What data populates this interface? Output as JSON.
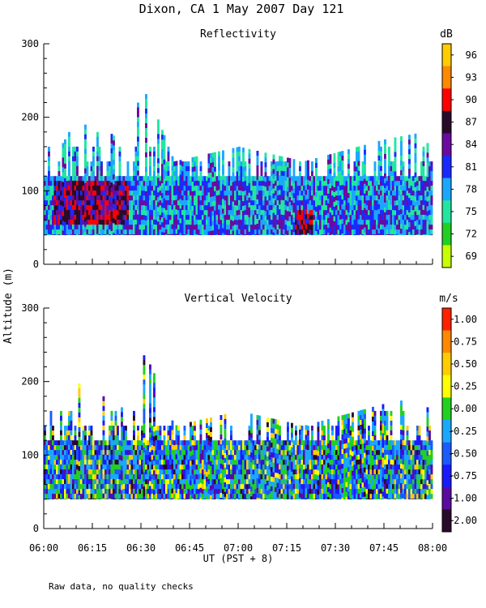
{
  "title": "Dixon, CA  1 May 2007  Day 121",
  "ylabel": "Altitude (m)",
  "xlabel": "UT  (PST + 8)",
  "footnote": "Raw data, no quality checks",
  "xticks": [
    "06:00",
    "06:15",
    "06:30",
    "06:45",
    "07:00",
    "07:15",
    "07:30",
    "07:45",
    "08:00"
  ],
  "chart_data": [
    {
      "type": "heatmap",
      "title": "Reflectivity",
      "units": "dB",
      "xlim": [
        0,
        120
      ],
      "x_unit": "minutes after 06:00 UT",
      "ylim": [
        0,
        300
      ],
      "yticks": [
        0,
        100,
        200,
        300
      ],
      "colorbar_labels": [
        "96",
        "93",
        "90",
        "87",
        "84",
        "81",
        "78",
        "75",
        "72",
        "69"
      ],
      "colorbar_colors": [
        "#ffcc00",
        "#ff8800",
        "#ff0000",
        "#2a0a2a",
        "#6a0aa0",
        "#1a2aff",
        "#1aa8ff",
        "#22e6a0",
        "#22d022",
        "#c8ff00"
      ],
      "data_floor_m": 40,
      "typical_top_m": 120,
      "echo_tops": [
        {
          "minute": 0,
          "top_m": 160
        },
        {
          "minute": 5,
          "top_m": 160
        },
        {
          "minute": 10,
          "top_m": 200
        },
        {
          "minute": 15,
          "top_m": 180
        },
        {
          "minute": 20,
          "top_m": 180
        },
        {
          "minute": 25,
          "top_m": 160
        },
        {
          "minute": 30,
          "top_m": 240
        },
        {
          "minute": 33,
          "top_m": 220
        },
        {
          "minute": 40,
          "top_m": 140
        },
        {
          "minute": 60,
          "top_m": 160
        },
        {
          "minute": 80,
          "top_m": 140
        },
        {
          "minute": 105,
          "top_m": 170
        },
        {
          "minute": 117,
          "top_m": 180
        },
        {
          "minute": 120,
          "top_m": 140
        }
      ],
      "strong_echo_regions": [
        {
          "start_minute": 3,
          "end_minute": 26,
          "bottom_m": 60,
          "top_m": 115,
          "level_db": 90
        },
        {
          "start_minute": 77,
          "end_minute": 83,
          "bottom_m": 45,
          "top_m": 75,
          "level_db": 90
        }
      ]
    },
    {
      "type": "heatmap",
      "title": "Vertical Velocity",
      "units": "m/s",
      "xlim": [
        0,
        120
      ],
      "x_unit": "minutes after 06:00 UT",
      "ylim": [
        0,
        300
      ],
      "yticks": [
        0,
        100,
        200,
        300
      ],
      "colorbar_labels": [
        "1.00",
        "0.75",
        "0.50",
        "0.25",
        "0.00",
        "-0.25",
        "-0.50",
        "-0.75",
        "-1.00",
        "-2.00"
      ],
      "colorbar_colors": [
        "#ff2200",
        "#ff8800",
        "#ffcc00",
        "#ffff00",
        "#22d022",
        "#1aa8ff",
        "#1a5aff",
        "#1a1aff",
        "#5a0aa0",
        "#2a0a2a"
      ],
      "data_floor_m": 40,
      "typical_top_m": 120,
      "echo_tops": [
        {
          "minute": 0,
          "top_m": 160
        },
        {
          "minute": 5,
          "top_m": 160
        },
        {
          "minute": 10,
          "top_m": 200
        },
        {
          "minute": 15,
          "top_m": 180
        },
        {
          "minute": 20,
          "top_m": 180
        },
        {
          "minute": 25,
          "top_m": 160
        },
        {
          "minute": 30,
          "top_m": 240
        },
        {
          "minute": 33,
          "top_m": 220
        },
        {
          "minute": 40,
          "top_m": 140
        },
        {
          "minute": 60,
          "top_m": 160
        },
        {
          "minute": 80,
          "top_m": 140
        },
        {
          "minute": 105,
          "top_m": 170
        },
        {
          "minute": 117,
          "top_m": 180
        },
        {
          "minute": 120,
          "top_m": 140
        }
      ],
      "strong_echo_regions": []
    }
  ]
}
